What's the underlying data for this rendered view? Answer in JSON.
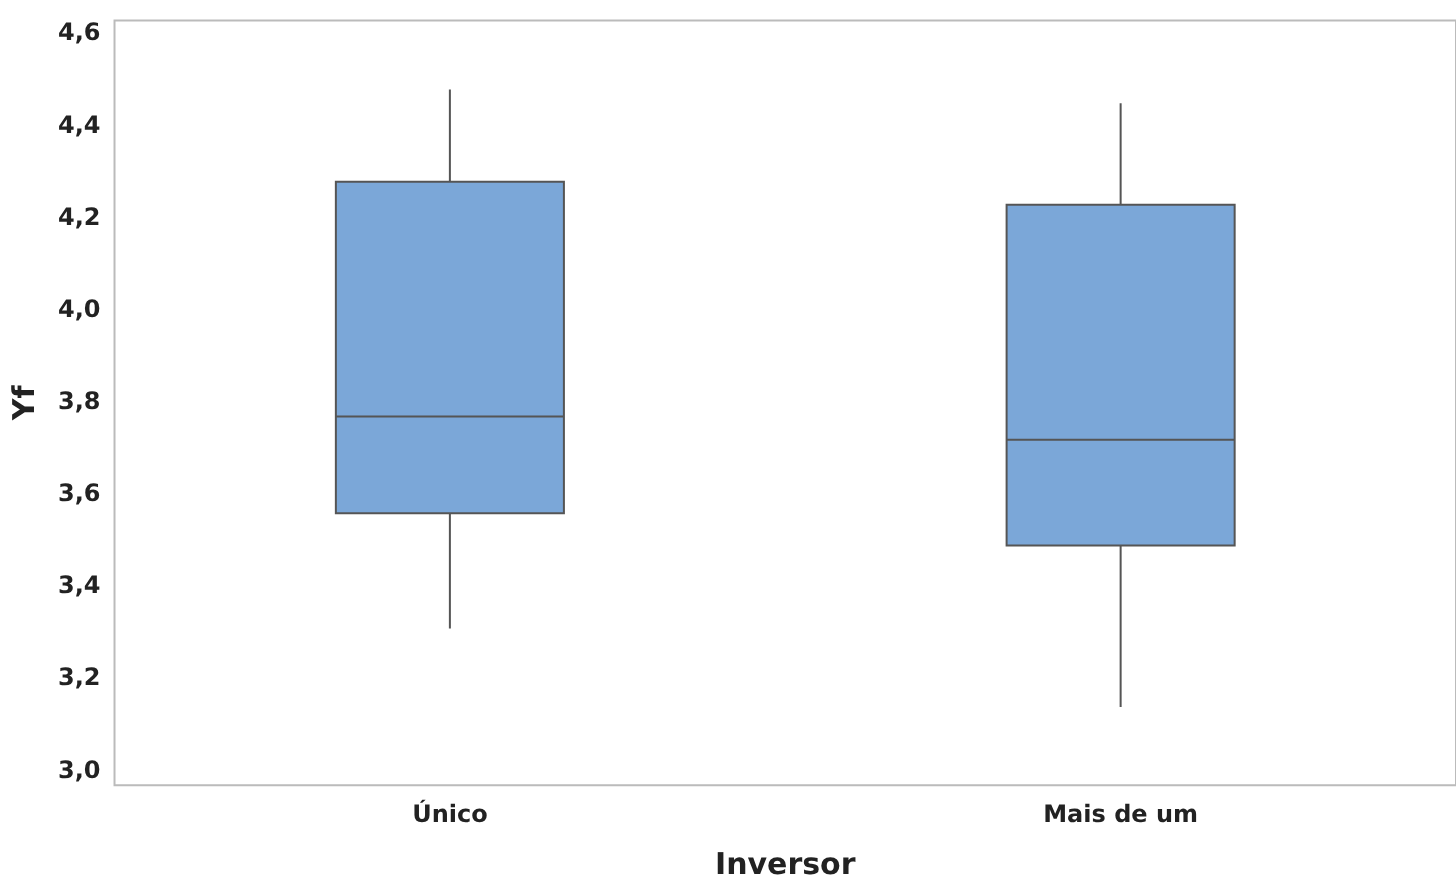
{
  "chart_data": {
    "type": "box",
    "xlabel": "Inversor",
    "ylabel": "Yf",
    "categories": [
      "Único",
      "Mais de um"
    ],
    "color": "#7ba7d8",
    "boxes": [
      {
        "low": 3.31,
        "q1": 3.56,
        "median": 3.77,
        "q3": 4.28,
        "high": 4.48
      },
      {
        "low": 3.14,
        "q1": 3.49,
        "median": 3.72,
        "q3": 4.23,
        "high": 4.45
      }
    ],
    "ylim": [
      2.97,
      4.63
    ],
    "yticks": [
      {
        "value": 3.0,
        "label": "3,0"
      },
      {
        "value": 3.2,
        "label": "3,2"
      },
      {
        "value": 3.4,
        "label": "3,4"
      },
      {
        "value": 3.6,
        "label": "3,6"
      },
      {
        "value": 3.8,
        "label": "3,8"
      },
      {
        "value": 4.0,
        "label": "4,0"
      },
      {
        "value": 4.2,
        "label": "4,2"
      },
      {
        "value": 4.4,
        "label": "4,4"
      },
      {
        "value": 4.6,
        "label": "4,6"
      }
    ],
    "grid": false,
    "legend": false
  }
}
